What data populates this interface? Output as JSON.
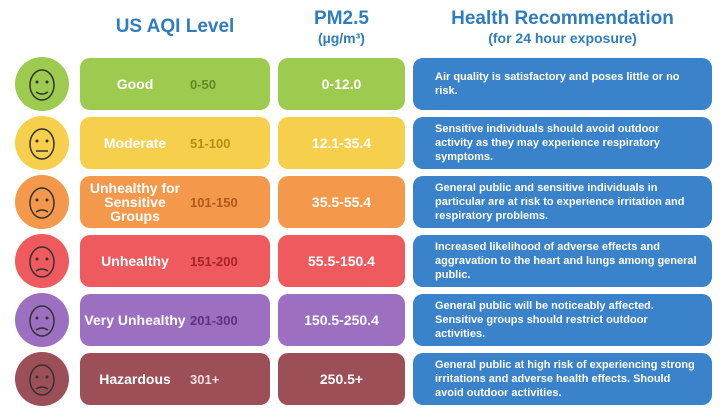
{
  "header": {
    "aqi_title": "US AQI Level",
    "pm_title": "PM2.5",
    "pm_unit": "(µg/m³)",
    "rec_title": "Health Recommendation",
    "rec_subtitle": "(for 24 hour exposure)"
  },
  "rows": [
    {
      "level": "Good",
      "range": "0-50",
      "pm25": "0-12.0",
      "recommendation": "Air quality is satisfactory and poses little or no risk."
    },
    {
      "level": "Moderate",
      "range": "51-100",
      "pm25": "12.1-35.4",
      "recommendation": "Sensitive individuals should avoid outdoor activity as they may experience respiratory symptoms."
    },
    {
      "level": "Unhealthy for Sensitive Groups",
      "range": "101-150",
      "pm25": "35.5-55.4",
      "recommendation": "General public and sensitive individuals in particular are at risk to experience irritation and respiratory problems."
    },
    {
      "level": "Unhealthy",
      "range": "151-200",
      "pm25": "55.5-150.4",
      "recommendation": "Increased likelihood of adverse effects and aggravation to the heart and lungs among general public."
    },
    {
      "level": "Very Unhealthy",
      "range": "201-300",
      "pm25": "150.5-250.4",
      "recommendation": "General public will be noticeably affected. Sensitive groups should restrict outdoor activities."
    },
    {
      "level": "Hazardous",
      "range": "301+",
      "pm25": "250.5+",
      "recommendation": "General public at high risk of experiencing strong irritations and adverse health effects. Should avoid outdoor activities."
    }
  ]
}
